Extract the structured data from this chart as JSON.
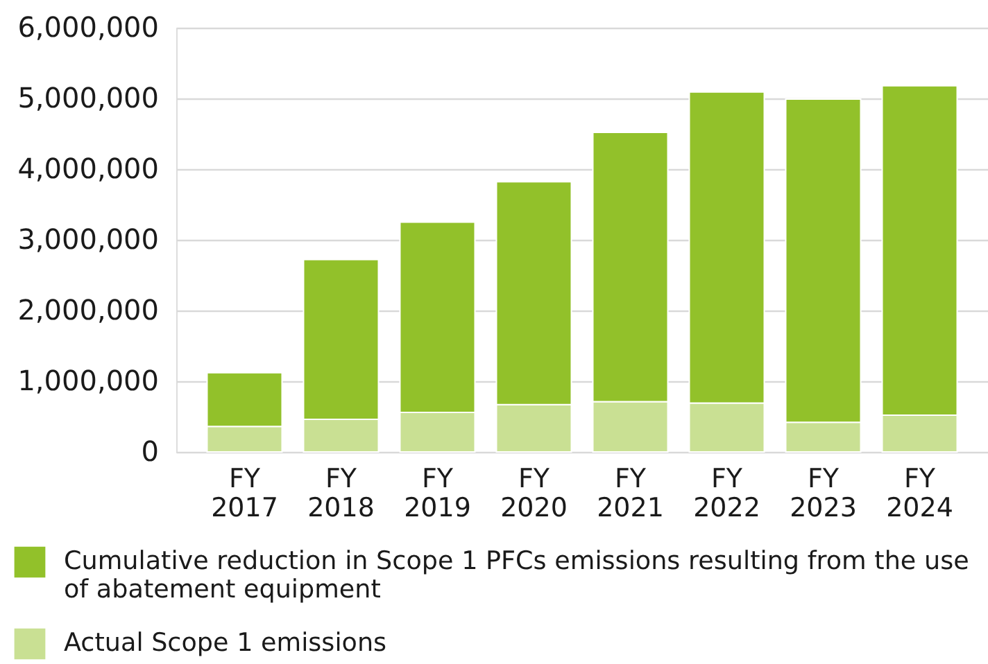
{
  "chart_data": {
    "type": "bar",
    "stacked": true,
    "categories": [
      "FY 2017",
      "FY 2018",
      "FY 2019",
      "FY 2020",
      "FY 2021",
      "FY 2022",
      "FY 2023",
      "FY 2024"
    ],
    "series": [
      {
        "name": "Actual Scope 1 emissions",
        "color": "#c9e093",
        "values": [
          360000,
          460000,
          560000,
          670000,
          710000,
          690000,
          420000,
          520000
        ]
      },
      {
        "name": "Cumulative reduction in Scope 1 PFCs emissions resulting from the use of abatement equipment",
        "color": "#92c12a",
        "values": [
          760000,
          2260000,
          2690000,
          3150000,
          3810000,
          4400000,
          4570000,
          4660000
        ]
      }
    ],
    "ylim": [
      0,
      6000000
    ],
    "yticks": [
      0,
      {
        "value": 1000000,
        "label": "1,000,000"
      },
      {
        "value": 2000000,
        "label": "2,000,000"
      },
      {
        "value": 3000000,
        "label": "3,000,000"
      },
      {
        "value": 4000000,
        "label": "4,000,000"
      },
      {
        "value": 5000000,
        "label": "5,000,000"
      },
      {
        "value": 6000000,
        "label": "6,000,000"
      }
    ],
    "grid": "y",
    "legend": "bottom"
  }
}
